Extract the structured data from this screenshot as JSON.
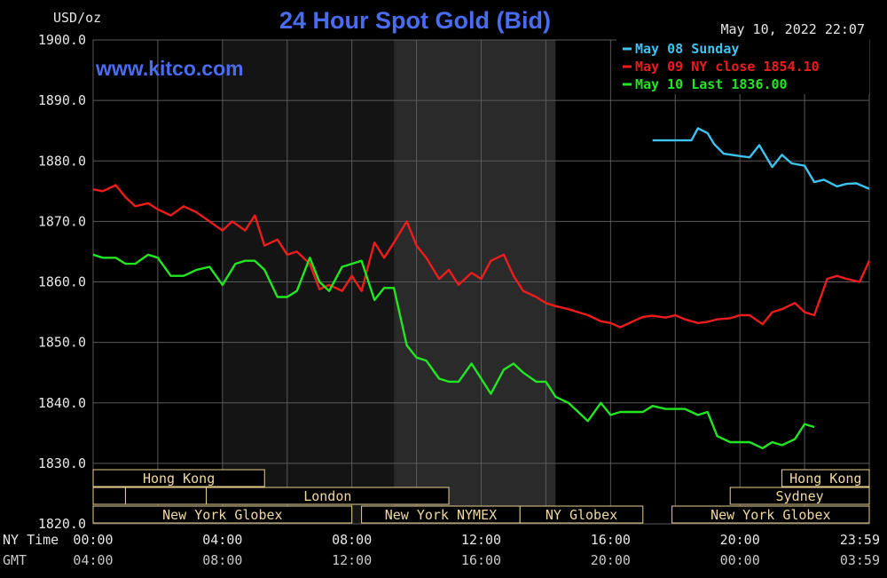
{
  "chart_data": {
    "type": "line",
    "title": "24 Hour Spot Gold (Bid)",
    "website": "www.kitco.com",
    "timestamp": "May 10, 2022 22:07",
    "ylabel": "USD/oz",
    "ylim": [
      1820,
      1900
    ],
    "yticks": [
      "1900.0",
      "1890.0",
      "1880.0",
      "1870.0",
      "1860.0",
      "1850.0",
      "1840.0",
      "1830.0",
      "1820.0"
    ],
    "xlim": [
      0,
      24
    ],
    "grid": true,
    "x_rows": [
      {
        "label": "NY Time",
        "ticks": [
          "00:00",
          "04:00",
          "08:00",
          "12:00",
          "16:00",
          "20:00",
          "23:59"
        ]
      },
      {
        "label": "GMT",
        "ticks": [
          "04:00",
          "08:00",
          "12:00",
          "16:00",
          "20:00",
          "00:00",
          "03:59"
        ]
      }
    ],
    "legend_position": "top-right",
    "colors": {
      "background": "#000000",
      "grid": "#5a5a5a",
      "axis_text": "#e6e6e6",
      "title": "#4a6cf5",
      "session_text": "#f0d8a0",
      "session_border": "#e8d090",
      "shade_light": "#2a2a2a",
      "shade_dark": "#141414"
    },
    "series": [
      {
        "name": "May 08 Sunday",
        "color": "#3ec3f0",
        "x": [
          17.3,
          18.0,
          18.5,
          18.7,
          19.0,
          19.2,
          19.5,
          20.0,
          20.3,
          20.6,
          21.0,
          21.3,
          21.6,
          22.0,
          22.3,
          22.6,
          23.0,
          23.3,
          23.6,
          24.0
        ],
        "y": [
          1883.4,
          1883.4,
          1883.4,
          1885.4,
          1884.6,
          1882.8,
          1881.2,
          1880.8,
          1880.6,
          1882.6,
          1879.0,
          1881.0,
          1879.6,
          1879.2,
          1876.5,
          1876.9,
          1875.8,
          1876.2,
          1876.3,
          1875.4
        ]
      },
      {
        "name": "May 09 NY close 1854.10",
        "color": "#ee1c1c",
        "x": [
          0.0,
          0.3,
          0.7,
          1.0,
          1.3,
          1.7,
          2.0,
          2.4,
          2.8,
          3.2,
          3.6,
          4.0,
          4.3,
          4.7,
          5.0,
          5.3,
          5.7,
          6.0,
          6.3,
          6.7,
          7.0,
          7.3,
          7.7,
          8.0,
          8.3,
          8.7,
          9.0,
          9.3,
          9.7,
          10.0,
          10.3,
          10.7,
          11.0,
          11.3,
          11.7,
          12.0,
          12.3,
          12.7,
          13.0,
          13.3,
          13.7,
          14.0,
          14.3,
          14.7,
          15.0,
          15.3,
          15.7,
          16.0,
          16.3,
          16.7,
          17.0,
          17.3,
          17.7,
          18.0,
          18.3,
          18.7,
          19.0,
          19.3,
          19.7,
          20.0,
          20.3,
          20.7,
          21.0,
          21.3,
          21.7,
          22.0,
          22.3,
          22.7,
          23.0,
          23.3,
          23.7,
          24.0
        ],
        "y": [
          1875.3,
          1875.0,
          1876.0,
          1874.0,
          1872.5,
          1873.0,
          1872.0,
          1871.0,
          1872.5,
          1871.5,
          1870.0,
          1868.5,
          1870.0,
          1868.5,
          1871.0,
          1866.0,
          1867.0,
          1864.5,
          1865.0,
          1863.0,
          1858.8,
          1859.5,
          1858.5,
          1861.0,
          1858.5,
          1866.5,
          1864.0,
          1866.5,
          1870.0,
          1866.0,
          1864.0,
          1860.5,
          1862.0,
          1859.5,
          1861.5,
          1860.5,
          1863.5,
          1864.5,
          1861.0,
          1858.5,
          1857.5,
          1856.5,
          1856.0,
          1855.5,
          1855.0,
          1854.5,
          1853.5,
          1853.2,
          1852.5,
          1853.5,
          1854.2,
          1854.4,
          1854.1,
          1854.5,
          1853.8,
          1853.2,
          1853.4,
          1853.8,
          1854.0,
          1854.5,
          1854.5,
          1853.0,
          1855.0,
          1855.5,
          1856.5,
          1855.0,
          1854.5,
          1860.5,
          1861.0,
          1860.5,
          1860.0,
          1863.5
        ]
      },
      {
        "name": "May 10 Last 1836.00",
        "color": "#22e622",
        "x": [
          0.0,
          0.3,
          0.7,
          1.0,
          1.3,
          1.7,
          2.0,
          2.4,
          2.8,
          3.2,
          3.6,
          4.0,
          4.4,
          4.7,
          5.0,
          5.3,
          5.7,
          6.0,
          6.3,
          6.7,
          7.0,
          7.3,
          7.7,
          8.0,
          8.3,
          8.7,
          9.0,
          9.3,
          9.7,
          10.0,
          10.3,
          10.7,
          11.0,
          11.3,
          11.7,
          12.0,
          12.3,
          12.7,
          13.0,
          13.3,
          13.7,
          14.0,
          14.3,
          14.7,
          15.0,
          15.3,
          15.7,
          16.0,
          16.3,
          16.7,
          17.0,
          17.3,
          17.7,
          18.0,
          18.3,
          18.7,
          19.0,
          19.3,
          19.7,
          20.0,
          20.3,
          20.7,
          21.0,
          21.3,
          21.7,
          22.0,
          22.3
        ],
        "y": [
          1864.5,
          1864.0,
          1864.0,
          1863.0,
          1863.0,
          1864.5,
          1864.0,
          1861.0,
          1861.0,
          1862.0,
          1862.5,
          1859.5,
          1863.0,
          1863.5,
          1863.5,
          1862.0,
          1857.5,
          1857.5,
          1858.5,
          1864.0,
          1860.0,
          1858.5,
          1862.5,
          1863.0,
          1863.5,
          1857.0,
          1859.0,
          1859.0,
          1849.5,
          1847.5,
          1847.0,
          1844.0,
          1843.5,
          1843.5,
          1846.5,
          1844.0,
          1841.5,
          1845.5,
          1846.5,
          1845.0,
          1843.5,
          1843.5,
          1841.0,
          1840.0,
          1838.5,
          1837.0,
          1840.0,
          1838.0,
          1838.5,
          1838.5,
          1838.5,
          1839.5,
          1839.0,
          1839.0,
          1839.0,
          1838.0,
          1838.5,
          1834.5,
          1833.5,
          1833.5,
          1833.5,
          1832.5,
          1833.5,
          1833.0,
          1834.0,
          1836.5,
          1836.0
        ]
      }
    ],
    "shaded_regions": [
      {
        "start": 9.3,
        "end": 14.3,
        "tone": "light"
      },
      {
        "start": 4.0,
        "end": 9.3,
        "tone": "dark"
      }
    ],
    "sessions": [
      {
        "label": "Hong Kong",
        "row": 0,
        "start": 0.0,
        "end": 5.3
      },
      {
        "label": "",
        "row": 1,
        "start": 0.0,
        "end": 1.0
      },
      {
        "label": "",
        "row": 1,
        "start": 1.0,
        "end": 3.5
      },
      {
        "label": "London",
        "row": 1,
        "start": 3.5,
        "end": 11.0
      },
      {
        "label": "New York Globex",
        "row": 2,
        "start": 0.0,
        "end": 8.0
      },
      {
        "label": "New York NYMEX",
        "row": 2,
        "start": 8.3,
        "end": 13.2
      },
      {
        "label": "NY Globex",
        "row": 2,
        "start": 13.2,
        "end": 17.0
      },
      {
        "label": "Hong Kong",
        "row": 0,
        "start": 21.3,
        "end": 24.0
      },
      {
        "label": "Sydney",
        "row": 1,
        "start": 19.7,
        "end": 24.0
      },
      {
        "label": "New York Globex",
        "row": 2,
        "start": 17.9,
        "end": 24.0
      }
    ]
  }
}
